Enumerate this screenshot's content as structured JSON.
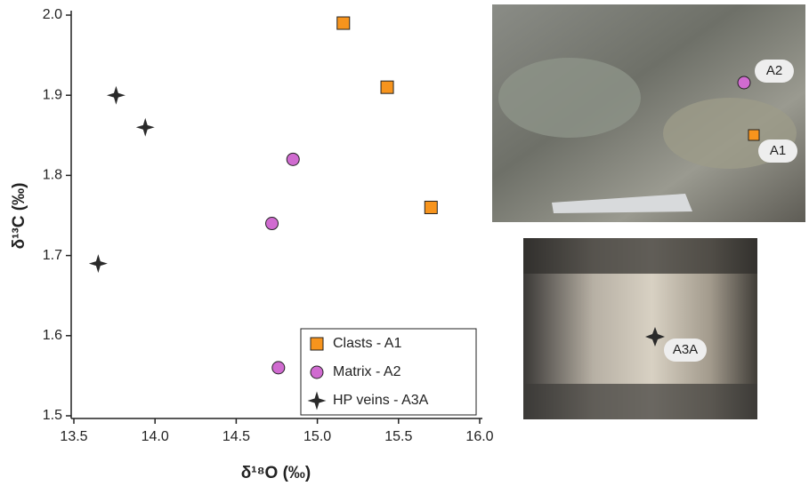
{
  "chart_data": {
    "type": "scatter",
    "xlabel": "δ¹⁸O (‰)",
    "ylabel": "δ¹³C (‰)",
    "xlim": [
      13.5,
      16.0
    ],
    "ylim": [
      1.5,
      2.0
    ],
    "xticks": [
      13.5,
      {
        "value": 14.0,
        "label": "14.0"
      },
      14.5,
      {
        "value": 15.0,
        "label": "15.0"
      },
      15.5,
      {
        "value": 16.0,
        "label": "16.0"
      }
    ],
    "yticks": [
      {
        "value": 1.5,
        "label": "1.5"
      },
      1.6,
      1.7,
      1.8,
      1.9,
      {
        "value": 2.0,
        "label": "2.0"
      }
    ],
    "legend": "lower right",
    "series": [
      {
        "name": "Clasts - A1",
        "color": "#f7941d",
        "marker": "square",
        "x": [
          15.16,
          15.43,
          15.7
        ],
        "values": [
          1.99,
          1.91,
          1.76
        ]
      },
      {
        "name": "Matrix - A2",
        "color": "#d06bd0",
        "marker": "circle",
        "x": [
          14.85,
          14.72,
          14.76
        ],
        "values": [
          1.82,
          1.74,
          1.56
        ]
      },
      {
        "name": "HP veins - A3A",
        "color": "#2a2a2a",
        "marker": "star",
        "x": [
          13.76,
          13.94,
          13.65
        ],
        "values": [
          1.9,
          1.86,
          1.69
        ]
      }
    ]
  },
  "photos": [
    {
      "labels": [
        "A2",
        "A1"
      ]
    },
    {
      "labels": [
        "A3A"
      ]
    }
  ]
}
